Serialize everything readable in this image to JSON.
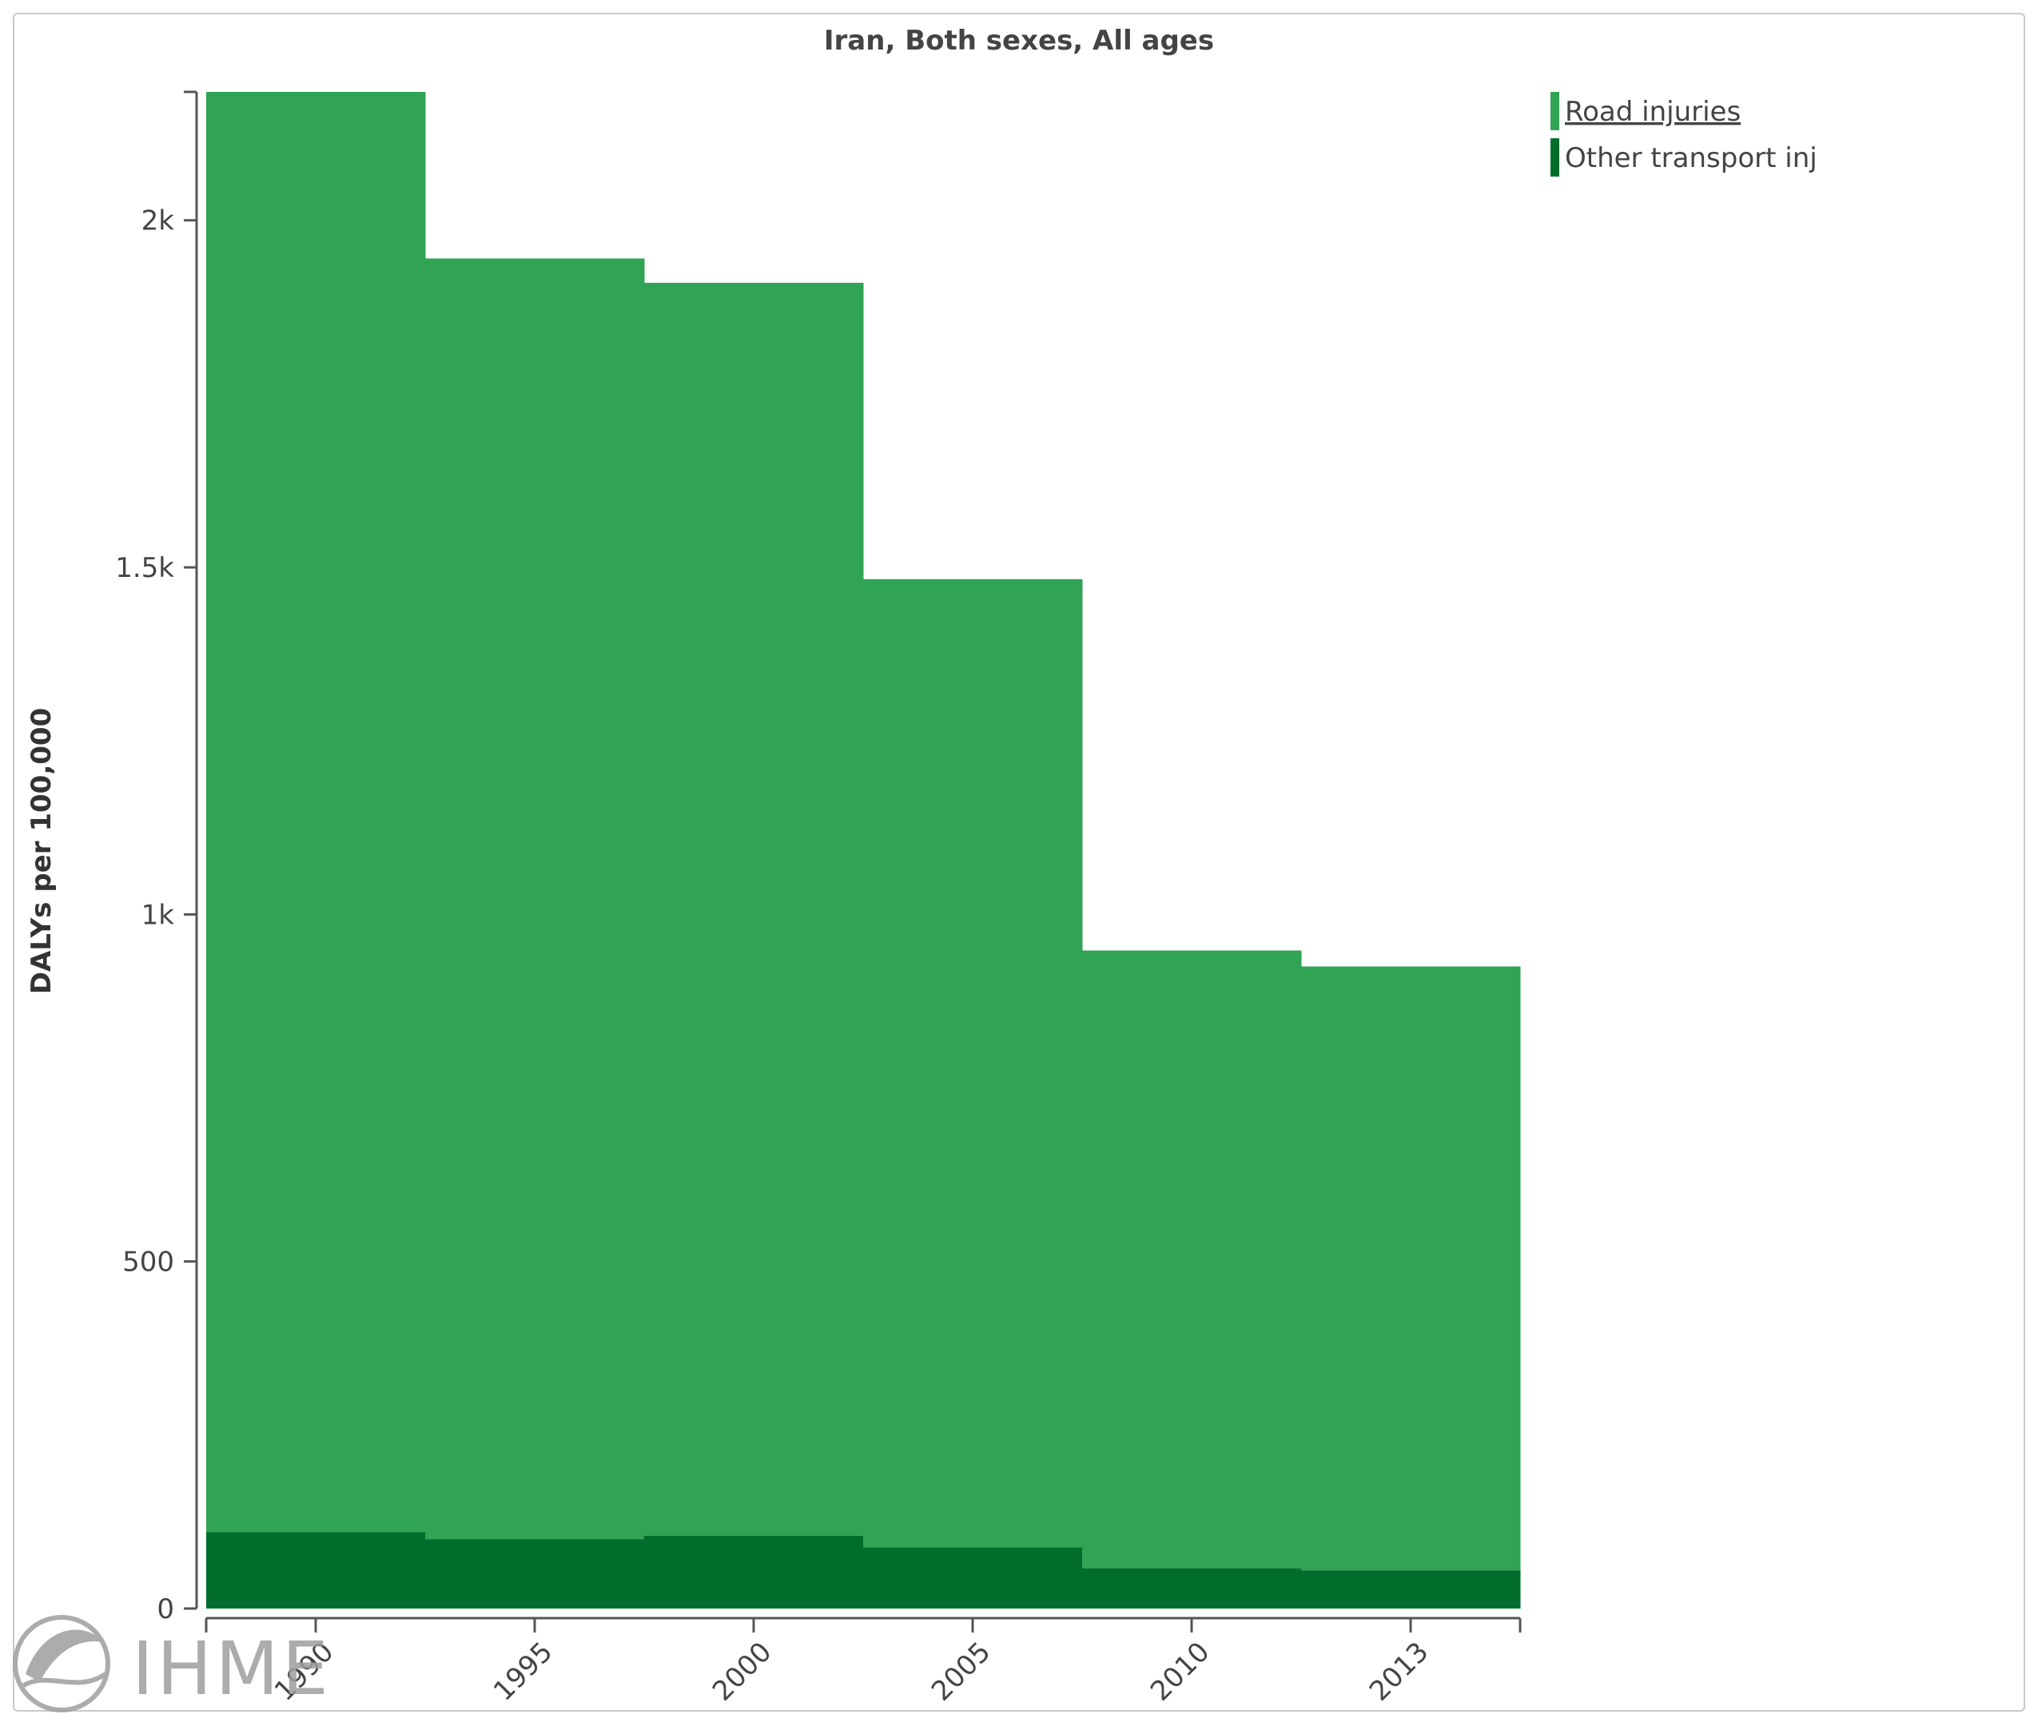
{
  "chart_data": {
    "type": "area",
    "title": "Iran, Both sexes, All ages",
    "ylabel": "DALYs per 100,000",
    "xlabel": "",
    "ylim": [
      0,
      2185
    ],
    "y_ticks": [
      {
        "value": 0,
        "label": "0"
      },
      {
        "value": 500,
        "label": "500"
      },
      {
        "value": 1000,
        "label": "1k"
      },
      {
        "value": 1500,
        "label": "1.5k"
      },
      {
        "value": 2000,
        "label": "2k"
      }
    ],
    "x_ticks": [
      "1990",
      "1995",
      "2000",
      "2005",
      "2010",
      "2013"
    ],
    "stacked": true,
    "step": true,
    "series": [
      {
        "name": "Road injuries",
        "color": "#31a354",
        "values": [
          2075,
          1845,
          1805,
          1395,
          890,
          870
        ]
      },
      {
        "name": "Other transport inj",
        "color": "#006d2c",
        "values": [
          110,
          100,
          105,
          88,
          58,
          55
        ]
      }
    ],
    "legend": "top-right"
  },
  "watermark": {
    "text": "IHME",
    "color": "#9e9e9e"
  }
}
